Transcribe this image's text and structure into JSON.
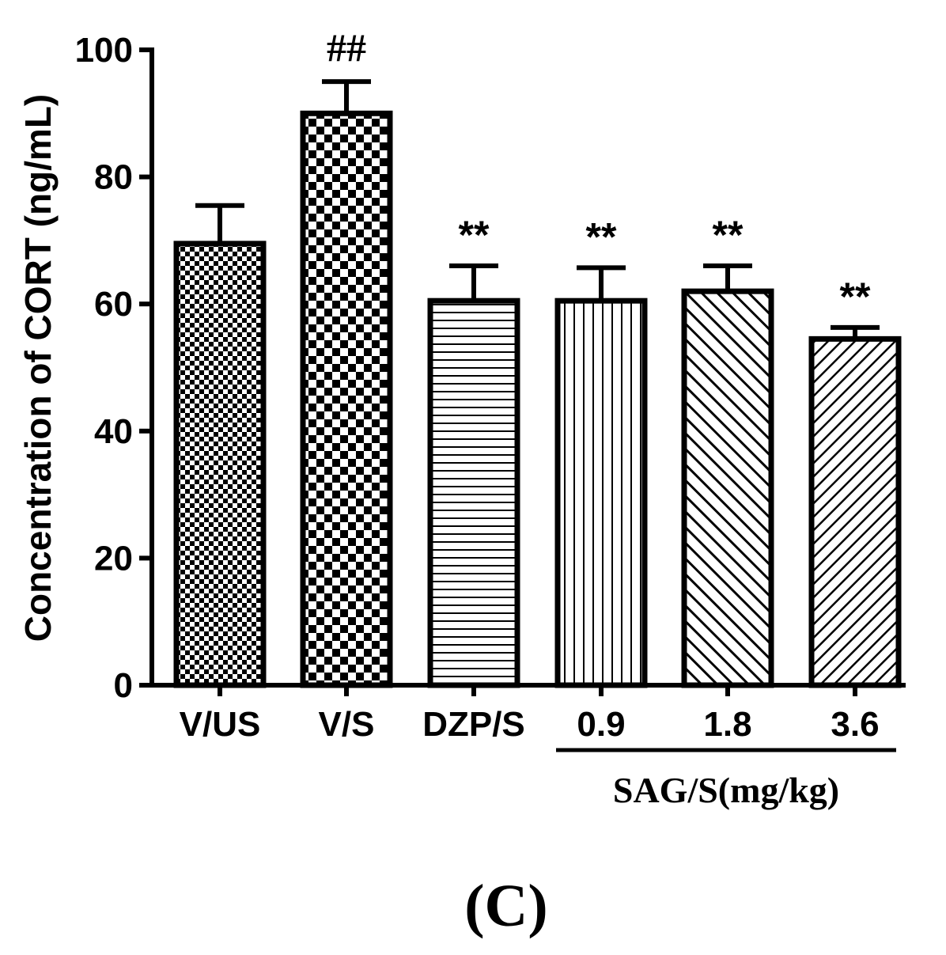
{
  "chart_data": {
    "type": "bar",
    "title": "",
    "xlabel": "",
    "ylabel": "Concentration of CORT (ng/mL)",
    "ylim": [
      0,
      100
    ],
    "yticks": [
      0,
      20,
      40,
      60,
      80,
      100
    ],
    "yticks_text": [
      "0",
      "20",
      "40",
      "60",
      "80",
      "100"
    ],
    "categories": [
      "V/US",
      "V/S",
      "DZP/S",
      "0.9",
      "1.8",
      "3.6"
    ],
    "values": [
      69.5,
      90,
      60.5,
      60.5,
      62,
      54.5
    ],
    "errors": [
      6,
      5,
      5.5,
      5.2,
      4,
      1.8
    ],
    "patterns": [
      "fine-check",
      "coarse-check",
      "horizontal-lines",
      "vertical-lines",
      "diagonal-lines",
      "diagonal-lines-dense"
    ],
    "annotations": [
      "",
      "##",
      "**",
      "**",
      "**",
      "**"
    ],
    "group_label": "SAG/S(mg/kg)",
    "group_categories": [
      "0.9",
      "1.8",
      "3.6"
    ],
    "panel_label": "(C)",
    "grid": false
  }
}
